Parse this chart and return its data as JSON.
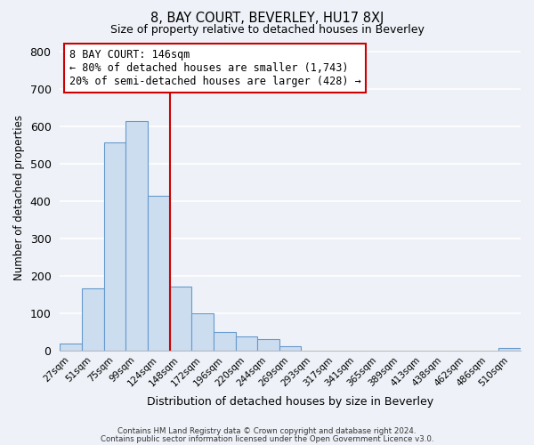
{
  "title": "8, BAY COURT, BEVERLEY, HU17 8XJ",
  "subtitle": "Size of property relative to detached houses in Beverley",
  "bar_labels": [
    "27sqm",
    "51sqm",
    "75sqm",
    "99sqm",
    "124sqm",
    "148sqm",
    "172sqm",
    "196sqm",
    "220sqm",
    "244sqm",
    "269sqm",
    "293sqm",
    "317sqm",
    "341sqm",
    "365sqm",
    "389sqm",
    "413sqm",
    "438sqm",
    "462sqm",
    "486sqm",
    "510sqm"
  ],
  "bar_heights": [
    20,
    168,
    558,
    615,
    415,
    172,
    102,
    50,
    40,
    33,
    12,
    0,
    0,
    0,
    0,
    0,
    0,
    0,
    0,
    0,
    8
  ],
  "bar_color": "#ccddf0",
  "bar_edge_color": "#6699cc",
  "vline_index": 4.5,
  "vline_color": "#cc0000",
  "ylabel": "Number of detached properties",
  "xlabel": "Distribution of detached houses by size in Beverley",
  "ylim": [
    0,
    820
  ],
  "yticks": [
    0,
    100,
    200,
    300,
    400,
    500,
    600,
    700,
    800
  ],
  "annotation_title": "8 BAY COURT: 146sqm",
  "annotation_line1": "← 80% of detached houses are smaller (1,743)",
  "annotation_line2": "20% of semi-detached houses are larger (428) →",
  "annotation_box_color": "#ffffff",
  "annotation_box_edge": "#cc0000",
  "footer1": "Contains HM Land Registry data © Crown copyright and database right 2024.",
  "footer2": "Contains public sector information licensed under the Open Government Licence v3.0.",
  "background_color": "#eef2f8",
  "grid_color": "#ffffff"
}
